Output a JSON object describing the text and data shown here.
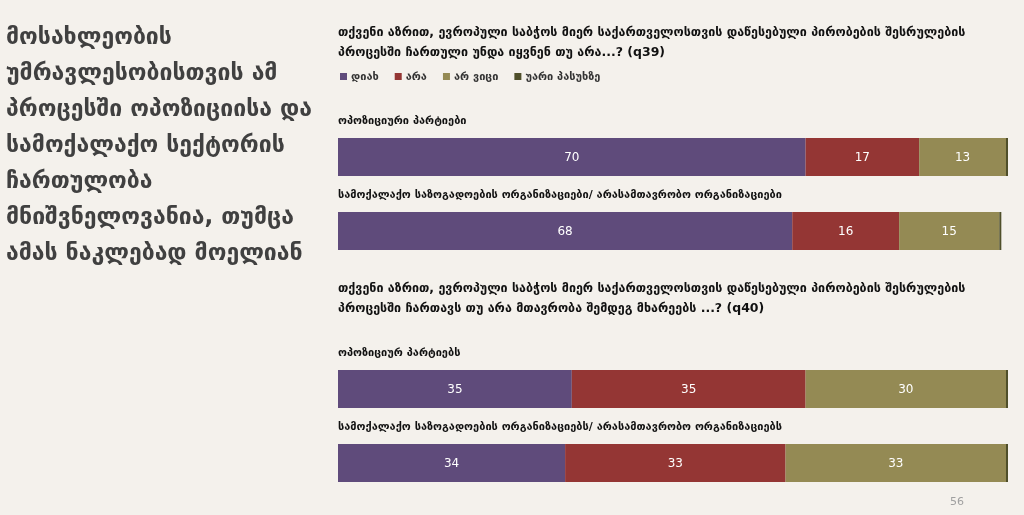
{
  "chart_data": [
    {
      "type": "other",
      "title": "მოსახლეობის უმრავლესობისთვის ამ პროცესში ოპოზიციისა და სამოქალაქო სექტორის ჩართულობა მნიშვნელოვანია, თუმცა ამას ნაკლებად მოელიან",
      "annotations": [
        "56"
      ]
    },
    {
      "type": "bar",
      "orientation": "horizontal",
      "stacked": true,
      "title": "თქვენი აზრით, ევროპული საბჭოს მიერ საქართველოსთვის დაწესებული პირობების შესრულების პროცესში ჩართული უნდა იყვნენ თუ არა...? (q39)",
      "categories": [
        "ოპოზიციური პარტიები",
        "სამოქალაქო საზოგადოების ორგანიზაციები/ არასამთავრობო ორგანიზაციები"
      ],
      "xlim": [
        0,
        100.3
      ],
      "legend": "top left",
      "series": [
        {
          "name": "დიახ",
          "color": "#5f4b7b",
          "values": [
            70,
            68
          ],
          "value_labels": [
            "70",
            "68"
          ]
        },
        {
          "name": "არა",
          "color": "#943634",
          "values": [
            17,
            16
          ],
          "value_labels": [
            "17",
            "16"
          ]
        },
        {
          "name": "არ ვიცი",
          "color": "#948a54",
          "values": [
            13,
            15
          ],
          "value_labels": [
            "13",
            "15"
          ]
        },
        {
          "name": "უარი პასუხზე",
          "color": "#4f4f2a",
          "values": [
            0.3,
            0.3
          ],
          "value_labels": [
            null,
            null
          ]
        }
      ]
    },
    {
      "type": "bar",
      "orientation": "horizontal",
      "stacked": true,
      "title": "თქვენი აზრით, ევროპული საბჭოს მიერ საქართველოსთვის დაწესებული პირობების შესრულების პროცესში ჩართავს თუ არა მთავრობა შემდეგ მხარეებს ...? (q40)",
      "categories": [
        "ოპოზიციურ პარტიებს",
        "სამოქალაქო საზოგადოების ორგანიზაციებს/ არასამთავრობო ორგანიზაციებს"
      ],
      "xlim": [
        0,
        100.3
      ],
      "series": [
        {
          "color": "#5f4b7b",
          "values": [
            35,
            34
          ],
          "value_labels": [
            "35",
            "34"
          ]
        },
        {
          "color": "#943634",
          "values": [
            35,
            33
          ],
          "value_labels": [
            "35",
            "33"
          ]
        },
        {
          "color": "#948a54",
          "values": [
            30,
            33
          ],
          "value_labels": [
            "30",
            "33"
          ]
        },
        {
          "color": "#4f4f2a",
          "values": [
            0.3,
            0.3
          ],
          "value_labels": [
            null,
            null
          ]
        }
      ]
    }
  ]
}
